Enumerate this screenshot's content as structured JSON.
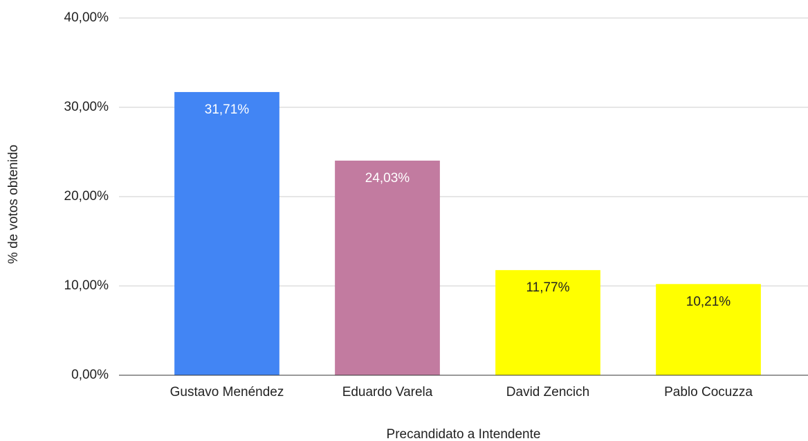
{
  "chart_data": {
    "type": "bar",
    "categories": [
      "Gustavo Menéndez",
      "Eduardo Varela",
      "David Zencich",
      "Pablo Cocuzza"
    ],
    "values": [
      31.71,
      24.03,
      11.77,
      10.21
    ],
    "value_labels": [
      "31,71%",
      "24,03%",
      "11,77%",
      "10,21%"
    ],
    "colors": [
      "#4285f4",
      "#c27ba0",
      "#ffff00",
      "#ffff00"
    ],
    "xlabel": "Precandidato a Intendente",
    "ylabel": "% de votos obtenido",
    "ylim": [
      0,
      40
    ],
    "yticks": [
      {
        "value": 0,
        "label": "0,00%"
      },
      {
        "value": 10,
        "label": "10,00%"
      },
      {
        "value": 20,
        "label": "20,00%"
      },
      {
        "value": 30,
        "label": "30,00%"
      },
      {
        "value": 40,
        "label": "40,00%"
      }
    ],
    "grid": true
  }
}
